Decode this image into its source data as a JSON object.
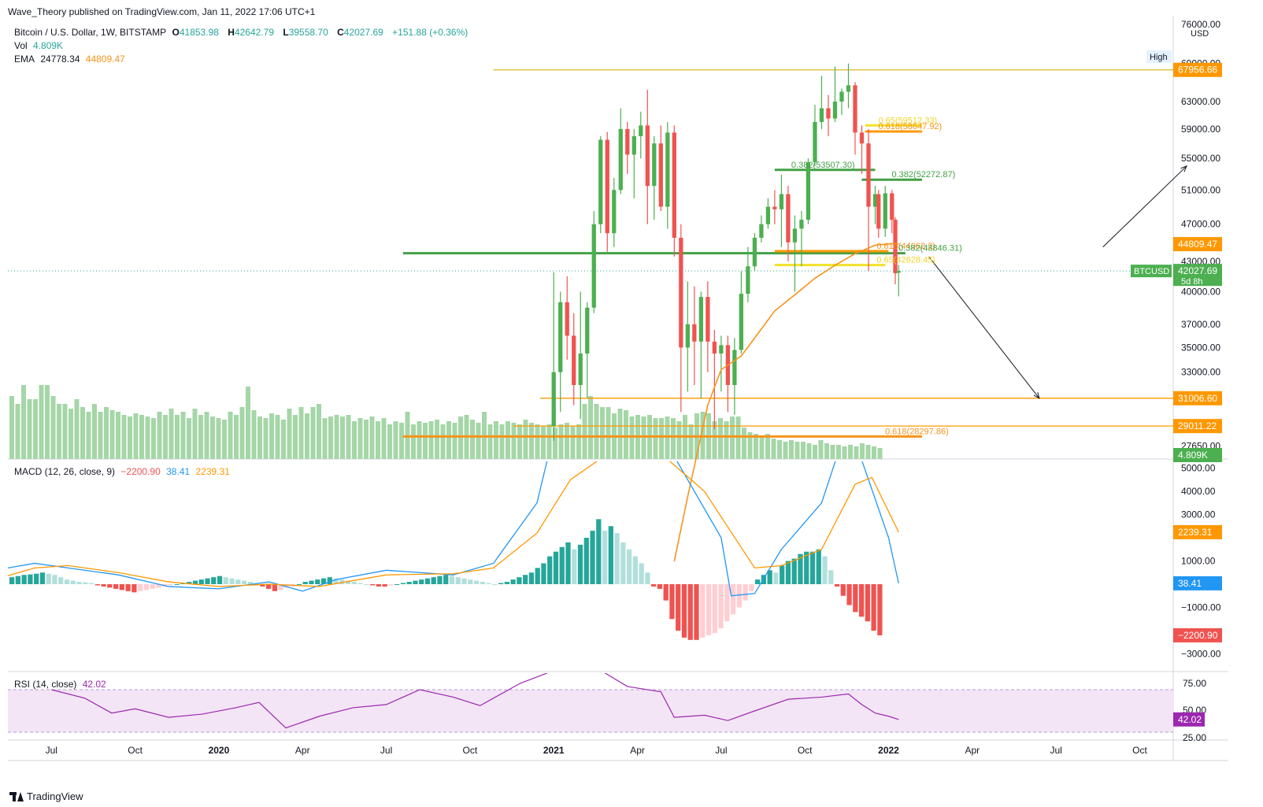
{
  "header": {
    "published": "Wave_Theory published on TradingView.com, Jan 11, 2022 17:06 UTC+1",
    "symbol": "Bitcoin / U.S. Dollar, 1W, BITSTAMP",
    "o_label": "O",
    "o_value": "41853.98",
    "h_label": "H",
    "h_value": "42642.79",
    "l_label": "L",
    "l_value": "39558.70",
    "c_label": "C",
    "c_value": "42027.69",
    "change": "+151.88 (+0.36%)",
    "vol_label": "Vol",
    "vol_value": "4.809K",
    "ema_label": "EMA",
    "ema_len": "24778.34",
    "ema_value": "44809.47",
    "macd_label": "MACD (12, 26, close, 9)",
    "macd_hist": "−2200.90",
    "macd_line": "38.41",
    "macd_signal": "2239.31",
    "rsi_label": "RSI (14, close)",
    "rsi_value": "42.02"
  },
  "footer": {
    "brand": "TradingView"
  },
  "colors": {
    "up": "#26a69a",
    "up_candle": "#4caf50",
    "down": "#ef5350",
    "volume": "#a5d6a7",
    "ema": "#f7931a",
    "macd": "#2196f3",
    "signal": "#ff9800",
    "rsi": "#9c27b0",
    "rsi_band": "#f3e5f5",
    "fib_yellow": "#f2e12a",
    "fib_orange": "#f7931a",
    "fib_green": "#43a047",
    "level_orange": "#ff9800"
  },
  "chart_data": {
    "type": "candlestick",
    "title": "Bitcoin / U.S. Dollar, 1W, BITSTAMP",
    "x_ticks": [
      "Jul",
      "Oct",
      "2020",
      "Apr",
      "Jul",
      "Oct",
      "2021",
      "Apr",
      "Jul",
      "Oct",
      "2022",
      "Apr",
      "Jul",
      "Oct"
    ],
    "price_ticks": [
      "76000.00",
      "69000.00",
      "63000.00",
      "59000.00",
      "55000.00",
      "51000.00",
      "47000.00",
      "43000.00",
      "40000.00",
      "37000.00",
      "35000.00",
      "33000.00",
      "29000.00",
      "27650.00"
    ],
    "price_axis_unit": "USD",
    "price_markers": [
      {
        "label": "High",
        "value": "69000.00"
      },
      {
        "label": "",
        "value": "67956.66"
      },
      {
        "label": "",
        "value": "44809.47"
      },
      {
        "label": "BTCUSD",
        "value": "42027.69",
        "sub": "5d 8h"
      },
      {
        "label": "",
        "value": "31006.60"
      },
      {
        "label": "",
        "value": "29011.22"
      },
      {
        "label": "",
        "value": "4.809K"
      }
    ],
    "annotations": [
      "0.65(59512.33)",
      "0.618(58647.92)",
      "0.382(53507.30)",
      "0.382(52272.87)",
      "0.618(44062.2)",
      "0.382(43846.31)",
      "0.65(42628.45)",
      "0.618(28297.86)"
    ],
    "candles": [
      [
        2021.0,
        29000,
        41900,
        28000,
        33000
      ],
      [
        2021.02,
        33000,
        40000,
        30000,
        39000
      ],
      [
        2021.04,
        39000,
        41500,
        34000,
        36000
      ],
      [
        2021.06,
        36000,
        38000,
        30500,
        32000
      ],
      [
        2021.08,
        32000,
        40000,
        29500,
        34500
      ],
      [
        2021.1,
        34500,
        39000,
        31000,
        38500
      ],
      [
        2021.12,
        38500,
        48500,
        38000,
        47000
      ],
      [
        2021.14,
        47000,
        58000,
        46000,
        57500
      ],
      [
        2021.16,
        57500,
        58600,
        44000,
        46000
      ],
      [
        2021.18,
        46000,
        52500,
        44500,
        51000
      ],
      [
        2021.2,
        51000,
        62000,
        50500,
        59000
      ],
      [
        2021.22,
        59000,
        60000,
        53000,
        55500
      ],
      [
        2021.24,
        55500,
        59000,
        50000,
        58000
      ],
      [
        2021.26,
        58000,
        61500,
        55000,
        59500
      ],
      [
        2021.28,
        59500,
        64800,
        47000,
        51500
      ],
      [
        2021.3,
        51500,
        58000,
        47500,
        57000
      ],
      [
        2021.32,
        57000,
        59500,
        48500,
        49000
      ],
      [
        2021.34,
        49000,
        60000,
        46500,
        58500
      ],
      [
        2021.36,
        58500,
        59500,
        43500,
        45500
      ],
      [
        2021.38,
        45500,
        47000,
        30000,
        35000
      ],
      [
        2021.4,
        35000,
        41000,
        31500,
        37000
      ],
      [
        2021.42,
        37000,
        40500,
        32000,
        35500
      ],
      [
        2021.44,
        35500,
        40000,
        31000,
        39500
      ],
      [
        2021.46,
        39500,
        41000,
        33000,
        35500
      ],
      [
        2021.48,
        35500,
        36500,
        28800,
        34500
      ],
      [
        2021.5,
        34500,
        36000,
        31500,
        35200
      ],
      [
        2021.52,
        35200,
        36000,
        30000,
        32000
      ],
      [
        2021.54,
        32000,
        35800,
        29800,
        34800
      ],
      [
        2021.56,
        34800,
        42000,
        34500,
        39800
      ],
      [
        2021.58,
        39800,
        44500,
        39000,
        42500
      ],
      [
        2021.6,
        42500,
        46000,
        42000,
        45500
      ],
      [
        2021.62,
        45500,
        48000,
        45000,
        47000
      ],
      [
        2021.64,
        47000,
        50000,
        46500,
        49000
      ],
      [
        2021.66,
        49000,
        51000,
        47000,
        48700
      ],
      [
        2021.68,
        48700,
        52900,
        44500,
        50500
      ],
      [
        2021.7,
        50500,
        51500,
        43000,
        45000
      ],
      [
        2021.72,
        45000,
        48000,
        40000,
        46500
      ],
      [
        2021.74,
        46500,
        48500,
        42500,
        47500
      ],
      [
        2021.76,
        47500,
        55000,
        47000,
        54500
      ],
      [
        2021.78,
        54500,
        62500,
        54000,
        60000
      ],
      [
        2021.8,
        60000,
        67000,
        59000,
        62000
      ],
      [
        2021.82,
        62000,
        64000,
        58000,
        60500
      ],
      [
        2021.84,
        60500,
        68500,
        60000,
        63000
      ],
      [
        2021.86,
        63000,
        65000,
        61000,
        64500
      ],
      [
        2021.88,
        64500,
        69000,
        62000,
        65500
      ],
      [
        2021.9,
        65500,
        66000,
        55500,
        58500
      ],
      [
        2021.92,
        58500,
        59500,
        53000,
        57000
      ],
      [
        2021.94,
        57000,
        59000,
        42000,
        49000
      ],
      [
        2021.96,
        49000,
        51500,
        47000,
        50500
      ],
      [
        2021.97,
        50500,
        51000,
        45500,
        46500
      ],
      [
        2021.99,
        46500,
        51500,
        45600,
        50600
      ],
      [
        2022.01,
        50600,
        51000,
        46000,
        47500
      ],
      [
        2022.02,
        47500,
        47800,
        40700,
        41800
      ],
      [
        2022.03,
        41853.98,
        42642.79,
        39558.7,
        42027.69
      ]
    ],
    "ema_path": [
      [
        2021.36,
        21000
      ],
      [
        2021.4,
        24500
      ],
      [
        2021.46,
        30500
      ],
      [
        2021.5,
        33200
      ],
      [
        2021.56,
        34300
      ],
      [
        2021.6,
        35800
      ],
      [
        2021.66,
        38200
      ],
      [
        2021.72,
        39700
      ],
      [
        2021.78,
        41300
      ],
      [
        2021.84,
        42600
      ],
      [
        2021.9,
        43800
      ],
      [
        2021.96,
        44700
      ],
      [
        2022.02,
        44900
      ],
      [
        2022.03,
        44809.47
      ]
    ],
    "levels": [
      {
        "name": "high-line",
        "value": 67956.66,
        "from": 2020.82,
        "to": 2022.95,
        "color": "#d4b82a"
      },
      {
        "name": "fib-0.65-top",
        "value": 59512.33,
        "from": 2021.93,
        "to": 2022.1,
        "color": "#f2e12a"
      },
      {
        "name": "fib-0.618-top",
        "value": 58647.92,
        "from": 2021.93,
        "to": 2022.1,
        "color": "#ff9800"
      },
      {
        "name": "fib-0.382-a",
        "value": 53507.3,
        "from": 2021.66,
        "to": 2021.96,
        "color": "#43a047"
      },
      {
        "name": "fib-0.382-b",
        "value": 52272.87,
        "from": 2021.92,
        "to": 2022.1,
        "color": "#43a047"
      },
      {
        "name": "support-green",
        "value": 43846.31,
        "from": 2020.55,
        "to": 2022.05,
        "color": "#43a047"
      },
      {
        "name": "fib-0.618-mid",
        "value": 44062.2,
        "from": 2021.66,
        "to": 2022.0,
        "color": "#ff9800"
      },
      {
        "name": "fib-0.65-mid",
        "value": 42628.45,
        "from": 2021.66,
        "to": 2021.99,
        "color": "#f2e12a"
      },
      {
        "name": "target-31006",
        "value": 31006.6,
        "from": 2020.96,
        "to": 2022.95,
        "color": "#ff9800"
      },
      {
        "name": "target-29011",
        "value": 29011.22,
        "from": 2020.88,
        "to": 2022.95,
        "color": "#ff9800"
      },
      {
        "name": "fib-0.618-low",
        "value": 28297.86,
        "from": 2020.55,
        "to": 2022.1,
        "color": "#f7931a"
      }
    ],
    "arrows": [
      {
        "name": "bullish-arrow",
        "from": [
          2022.64,
          44500
        ],
        "to": [
          2022.89,
          54000
        ]
      },
      {
        "name": "bearish-arrow",
        "from": [
          2022.12,
          43500
        ],
        "to": [
          2022.45,
          31000
        ]
      }
    ],
    "volume": [
      40,
      35,
      47,
      38,
      38,
      47,
      47,
      40,
      35,
      35,
      32,
      38,
      33,
      30,
      35,
      30,
      33,
      31,
      30,
      28,
      27,
      29,
      28,
      27,
      26,
      30,
      28,
      32,
      28,
      30,
      26,
      32,
      28,
      30,
      27,
      26,
      25,
      30,
      28,
      33,
      46,
      31,
      27,
      26,
      29,
      28,
      25,
      32,
      28,
      33,
      29,
      33,
      35,
      26,
      27,
      28,
      27,
      28,
      24,
      26,
      25,
      27,
      24,
      26,
      22,
      24,
      23,
      30,
      22,
      24,
      23,
      24,
      25,
      22,
      24,
      23,
      27,
      28,
      25,
      23,
      30,
      22,
      24,
      22,
      24,
      23,
      22,
      25,
      23,
      22,
      21,
      22,
      20,
      22,
      23,
      21,
      22,
      35,
      40,
      35,
      33,
      33,
      29,
      32,
      31,
      27,
      28,
      27,
      28,
      26,
      26,
      27,
      26,
      24,
      28,
      22,
      29,
      30,
      29,
      24,
      26,
      24,
      27,
      27,
      20,
      17,
      16,
      15,
      16,
      13,
      12,
      11,
      12,
      11,
      11,
      10,
      9,
      12,
      10,
      9,
      9,
      8,
      9,
      8,
      10,
      9,
      8,
      7
    ],
    "macd_line": [
      [
        2019.33,
        600
      ],
      [
        2019.45,
        900
      ],
      [
        2019.55,
        700
      ],
      [
        2019.7,
        400
      ],
      [
        2019.85,
        -100
      ],
      [
        2020.0,
        -200
      ],
      [
        2020.15,
        100
      ],
      [
        2020.25,
        -300
      ],
      [
        2020.35,
        200
      ],
      [
        2020.5,
        600
      ],
      [
        2020.7,
        400
      ],
      [
        2020.82,
        900
      ],
      [
        2020.95,
        3500
      ],
      [
        2021.0,
        6500
      ],
      [
        2021.3,
        7000
      ],
      [
        2021.5,
        2000
      ],
      [
        2021.53,
        -500
      ],
      [
        2021.6,
        -400
      ],
      [
        2021.68,
        1500
      ],
      [
        2021.8,
        3500
      ],
      [
        2021.88,
        7000
      ],
      [
        2021.94,
        4500
      ],
      [
        2022.0,
        2000
      ],
      [
        2022.03,
        38.41
      ]
    ],
    "macd_signal_line": [
      [
        2019.33,
        200
      ],
      [
        2019.45,
        700
      ],
      [
        2019.55,
        800
      ],
      [
        2019.7,
        500
      ],
      [
        2019.85,
        100
      ],
      [
        2020.0,
        -100
      ],
      [
        2020.15,
        0
      ],
      [
        2020.3,
        -100
      ],
      [
        2020.5,
        400
      ],
      [
        2020.7,
        450
      ],
      [
        2020.82,
        700
      ],
      [
        2020.95,
        2200
      ],
      [
        2021.05,
        4500
      ],
      [
        2021.25,
        6500
      ],
      [
        2021.45,
        4000
      ],
      [
        2021.6,
        700
      ],
      [
        2021.68,
        800
      ],
      [
        2021.8,
        1500
      ],
      [
        2021.9,
        4300
      ],
      [
        2021.95,
        4600
      ],
      [
        2022.03,
        2239.31
      ]
    ],
    "macd_hist": [
      300,
      350,
      400,
      420,
      450,
      500,
      450,
      400,
      300,
      200,
      150,
      100,
      80,
      50,
      -50,
      -100,
      -150,
      -200,
      -250,
      -300,
      -350,
      -300,
      -250,
      -200,
      -150,
      -100,
      -50,
      0,
      50,
      100,
      150,
      200,
      250,
      300,
      350,
      300,
      250,
      200,
      150,
      100,
      -50,
      -100,
      -200,
      -300,
      -250,
      -150,
      -100,
      0,
      100,
      150,
      200,
      250,
      300,
      250,
      200,
      150,
      100,
      50,
      0,
      -50,
      -100,
      -100,
      -50,
      0,
      50,
      100,
      150,
      200,
      250,
      300,
      350,
      400,
      350,
      300,
      250,
      200,
      150,
      100,
      50,
      0,
      50,
      100,
      200,
      300,
      400,
      500,
      700,
      900,
      1200,
      1400,
      1600,
      1800,
      1500,
      1700,
      2000,
      2300,
      2800,
      2300,
      2500,
      2200,
      1800,
      1500,
      1200,
      900,
      500,
      -100,
      -200,
      -700,
      -1500,
      -2000,
      -2300,
      -2400,
      -2400,
      -2300,
      -2200,
      -2100,
      -1900,
      -1600,
      -1300,
      -1000,
      -700,
      -300,
      200,
      400,
      600,
      500,
      800,
      1000,
      1100,
      1300,
      1400,
      1400,
      1500,
      1200,
      600,
      -100,
      -500,
      -900,
      -1200,
      -1400,
      -1600,
      -2000,
      -2200.9
    ],
    "rsi": [
      [
        2019.5,
        70
      ],
      [
        2019.6,
        62
      ],
      [
        2019.68,
        48
      ],
      [
        2019.75,
        52
      ],
      [
        2019.85,
        44
      ],
      [
        2019.95,
        47
      ],
      [
        2020.05,
        53
      ],
      [
        2020.12,
        58
      ],
      [
        2020.2,
        34
      ],
      [
        2020.3,
        45
      ],
      [
        2020.4,
        53
      ],
      [
        2020.5,
        56
      ],
      [
        2020.6,
        70
      ],
      [
        2020.7,
        63
      ],
      [
        2020.78,
        55
      ],
      [
        2020.9,
        76
      ],
      [
        2021.0,
        88
      ],
      [
        2021.12,
        92
      ],
      [
        2021.22,
        73
      ],
      [
        2021.32,
        68
      ],
      [
        2021.36,
        44
      ],
      [
        2021.45,
        46
      ],
      [
        2021.52,
        41
      ],
      [
        2021.6,
        50
      ],
      [
        2021.7,
        61
      ],
      [
        2021.8,
        63
      ],
      [
        2021.88,
        66
      ],
      [
        2021.92,
        56
      ],
      [
        2021.96,
        48
      ],
      [
        2022.0,
        45
      ],
      [
        2022.03,
        42.02
      ]
    ],
    "rsi_ticks": [
      "75.00",
      "50.00",
      "25.00"
    ],
    "macd_ticks": [
      "5000.00",
      "4000.00",
      "3000.00",
      "1000.00",
      "−1000.00",
      "−3000.00"
    ]
  }
}
